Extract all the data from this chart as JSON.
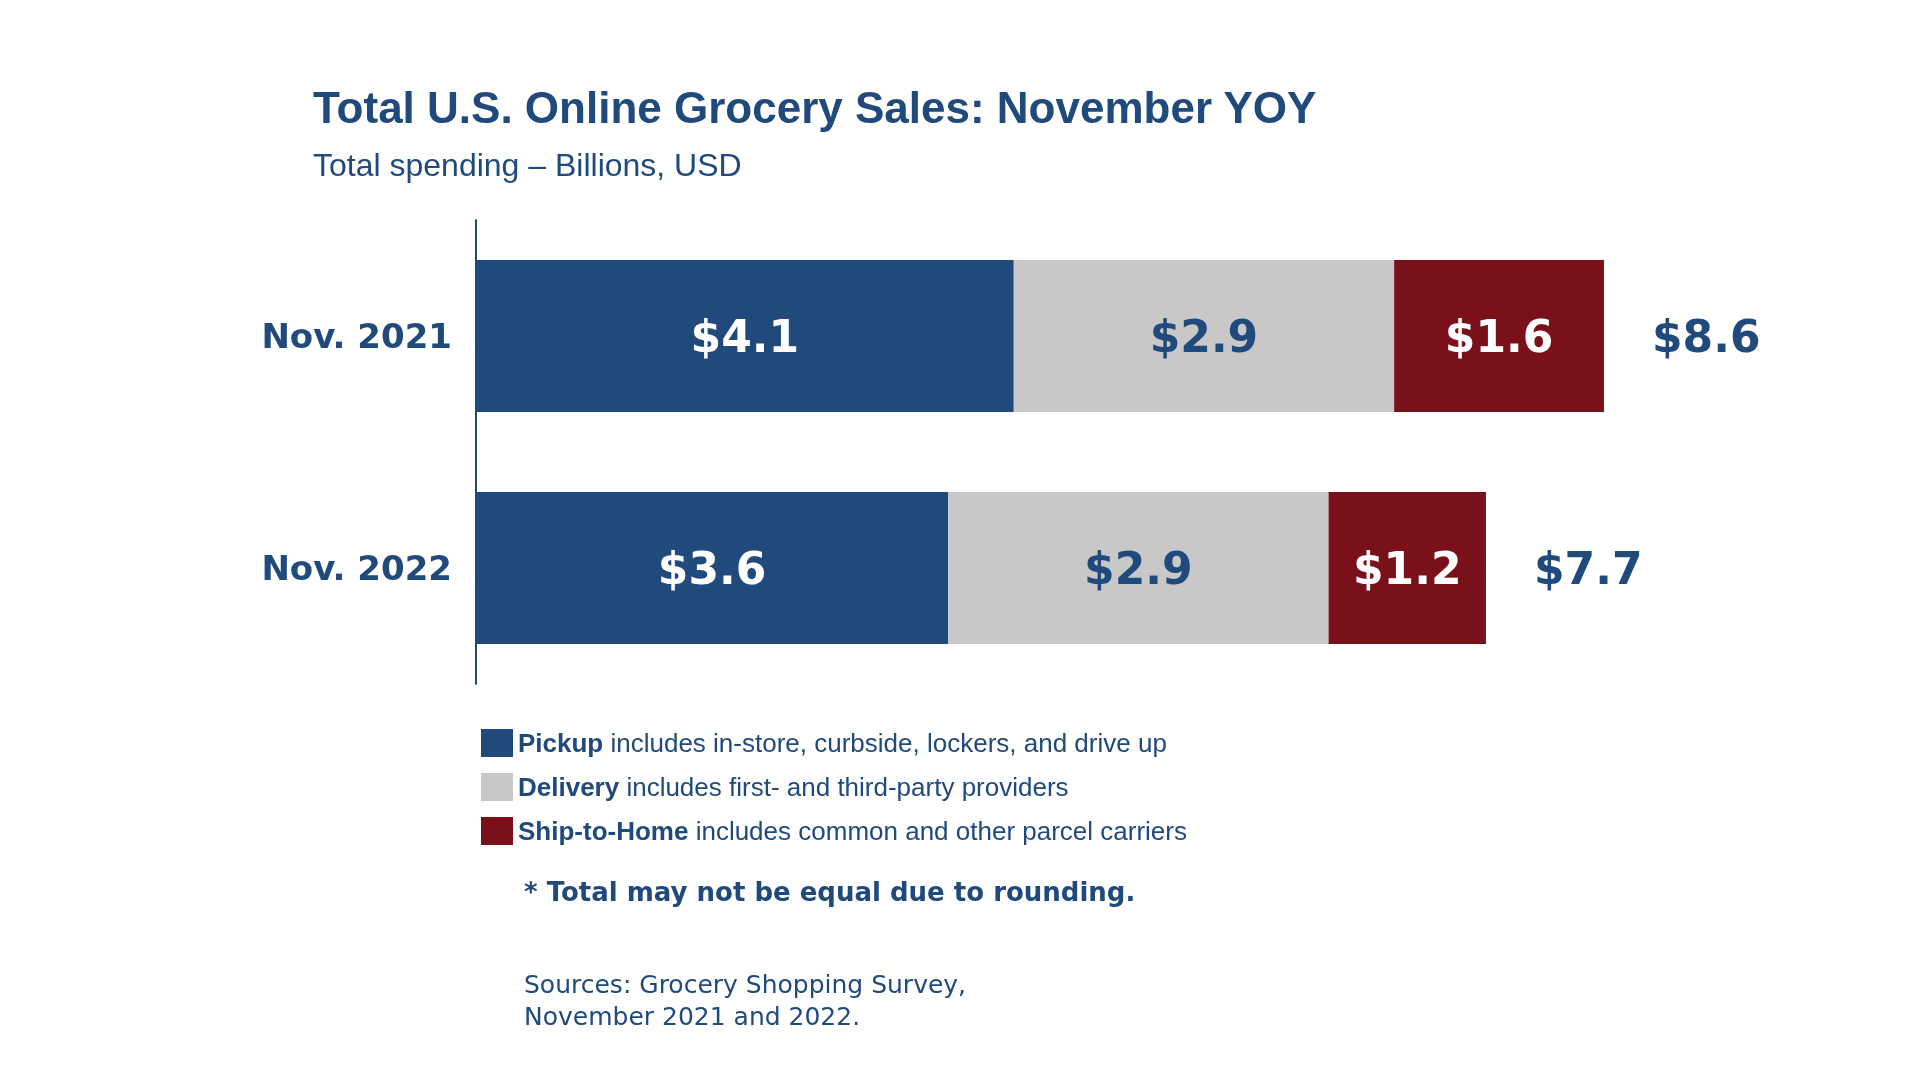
{
  "chart_data": {
    "type": "bar",
    "orientation": "horizontal",
    "stacked": true,
    "title": "Total U.S. Online Grocery Sales: November YOY",
    "subtitle": "Total spending – Billions, USD",
    "categories": [
      "Nov. 2021",
      "Nov. 2022"
    ],
    "series": [
      {
        "name": "Pickup includes in-store, curbside, lockers, and drive up",
        "color": "#214a7c",
        "values": [
          4.1,
          3.6
        ],
        "value_labels": [
          "$4.1",
          "$3.6"
        ]
      },
      {
        "name": "Delivery includes first- and third-party providers",
        "color": "#c8c8c8",
        "values": [
          2.9,
          2.9
        ],
        "value_labels": [
          "$2.9",
          "$2.9"
        ]
      },
      {
        "name": "Ship-to-Home includes common and other parcel carriers",
        "color": "#7a111a",
        "values": [
          1.6,
          1.2
        ],
        "value_labels": [
          "$1.6",
          "$1.2"
        ]
      }
    ],
    "totals": [
      "$8.6",
      "$7.7"
    ],
    "tick_labels": "y",
    "legend": "bottom",
    "annotations": [
      "* Total may not be equal due to rounding.",
      "Sources: Grocery Shopping Survey,\nNovember 2021 and 2022."
    ]
  }
}
